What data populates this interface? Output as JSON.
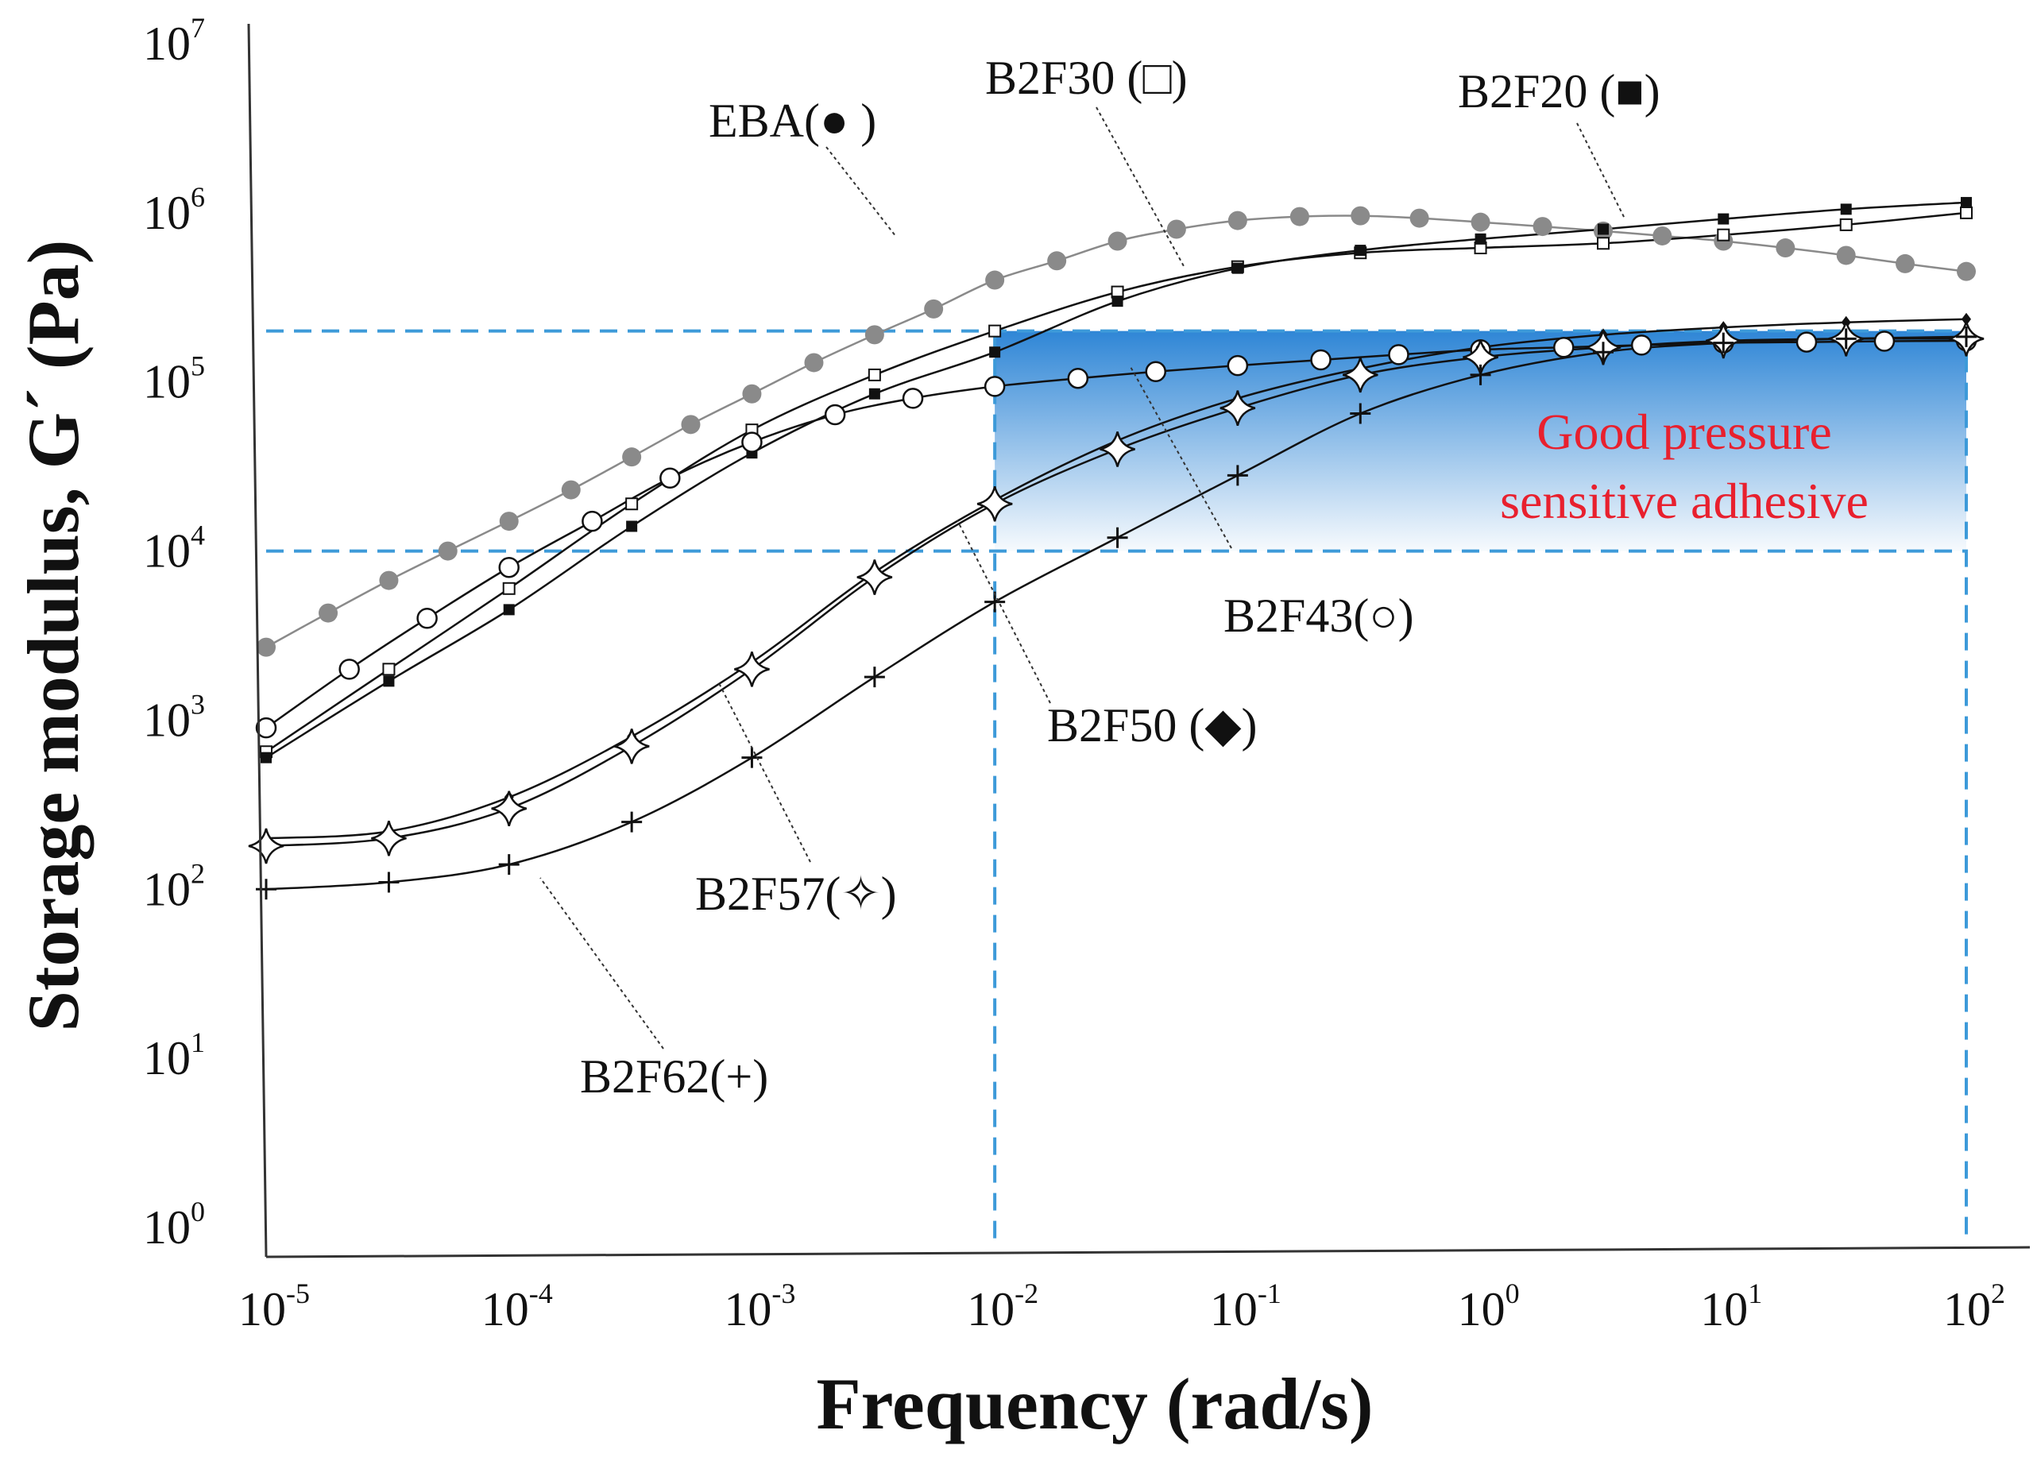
{
  "chart_data": {
    "type": "scatter",
    "title": "",
    "xlabel": "Frequency (rad/s)",
    "ylabel": "Storage modulus, G´ (Pa)",
    "xscale": "log",
    "yscale": "log",
    "xlim": [
      1e-05,
      100
    ],
    "ylim": [
      1,
      10000000
    ],
    "xticks": [
      {
        "base": "10",
        "exp": "-5"
      },
      {
        "base": "10",
        "exp": "-4"
      },
      {
        "base": "10",
        "exp": "-3"
      },
      {
        "base": "10",
        "exp": "-2"
      },
      {
        "base": "10",
        "exp": "-1"
      },
      {
        "base": "10",
        "exp": "0"
      },
      {
        "base": "10",
        "exp": "1"
      },
      {
        "base": "10",
        "exp": "2"
      }
    ],
    "yticks": [
      {
        "base": "10",
        "exp": "0"
      },
      {
        "base": "10",
        "exp": "1"
      },
      {
        "base": "10",
        "exp": "2"
      },
      {
        "base": "10",
        "exp": "3"
      },
      {
        "base": "10",
        "exp": "4"
      },
      {
        "base": "10",
        "exp": "5"
      },
      {
        "base": "10",
        "exp": "6"
      },
      {
        "base": "10",
        "exp": "7"
      }
    ],
    "region": {
      "label_line1": "Good pressure",
      "label_line2": "sensitive adhesive",
      "x_range": [
        0.01,
        100
      ],
      "y_range": [
        10000,
        200000
      ],
      "color": "#3d8fd9"
    },
    "series": [
      {
        "name": "EBA",
        "label": "EBA(● )",
        "marker": "filled-circle",
        "color": "#8a8a8a",
        "label_color": "#9a9a9a",
        "x": [
          1e-05,
          1.8e-05,
          3.2e-05,
          5.6e-05,
          0.0001,
          0.00018,
          0.00032,
          0.00056,
          0.001,
          0.0018,
          0.0032,
          0.0056,
          0.01,
          0.018,
          0.032,
          0.056,
          0.1,
          0.18,
          0.32,
          0.56,
          1,
          1.8,
          3.2,
          5.6,
          10,
          18,
          32,
          56,
          100
        ],
        "y": [
          2700,
          4300,
          6700,
          10000,
          15000,
          23000,
          36000,
          56000,
          85000,
          130000,
          190000,
          270000,
          400000,
          520000,
          680000,
          800000,
          900000,
          950000,
          960000,
          930000,
          880000,
          830000,
          780000,
          730000,
          680000,
          620000,
          560000,
          500000,
          450000
        ]
      },
      {
        "name": "B2F30",
        "label": "B2F30 (□)",
        "marker": "open-square",
        "color": "#111111",
        "x": [
          1e-05,
          3.2e-05,
          0.0001,
          0.00032,
          0.001,
          0.0032,
          0.01,
          0.032,
          0.1,
          0.32,
          1,
          3.2,
          10,
          32,
          100
        ],
        "y": [
          650,
          2000,
          6000,
          19000,
          52000,
          110000,
          200000,
          340000,
          480000,
          580000,
          620000,
          660000,
          740000,
          850000,
          1000000
        ]
      },
      {
        "name": "B2F20",
        "label": "B2F20 (■)",
        "marker": "filled-square",
        "color": "#111111",
        "x": [
          1e-05,
          3.2e-05,
          0.0001,
          0.00032,
          0.001,
          0.0032,
          0.01,
          0.032,
          0.1,
          0.32,
          1,
          3.2,
          10,
          32,
          100
        ],
        "y": [
          600,
          1700,
          4500,
          14000,
          38000,
          85000,
          150000,
          300000,
          470000,
          600000,
          700000,
          800000,
          920000,
          1050000,
          1150000
        ]
      },
      {
        "name": "B2F43",
        "label": "B2F43(○)",
        "marker": "open-circle",
        "color": "#111111",
        "x": [
          1e-05,
          2.2e-05,
          4.6e-05,
          0.0001,
          0.00022,
          0.00046,
          0.001,
          0.0022,
          0.0046,
          0.01,
          0.022,
          0.046,
          0.1,
          0.22,
          0.46,
          1,
          2.2,
          4.6,
          10,
          22,
          46,
          100
        ],
        "y": [
          900,
          2000,
          4000,
          8000,
          15000,
          27000,
          44000,
          64000,
          80000,
          94000,
          105000,
          115000,
          125000,
          135000,
          145000,
          155000,
          160000,
          165000,
          170000,
          172000,
          174000,
          175000
        ]
      },
      {
        "name": "B2F50",
        "label": "B2F50 (◆)",
        "marker": "filled-diamond",
        "color": "#111111",
        "x": [
          1e-05,
          3.2e-05,
          0.0001,
          0.00032,
          0.001,
          0.0032,
          0.01,
          0.032,
          0.1,
          0.32,
          1,
          3.2,
          10,
          32,
          100
        ],
        "y": [
          200,
          220,
          350,
          800,
          2200,
          7500,
          20000,
          45000,
          80000,
          120000,
          160000,
          190000,
          210000,
          225000,
          235000
        ]
      },
      {
        "name": "B2F57",
        "label": "B2F57(✧)",
        "marker": "open-star",
        "color": "#111111",
        "x": [
          1e-05,
          3.2e-05,
          0.0001,
          0.00032,
          0.001,
          0.0032,
          0.01,
          0.032,
          0.1,
          0.32,
          1,
          3.2,
          10,
          32,
          100
        ],
        "y": [
          180,
          200,
          300,
          700,
          2000,
          7000,
          19000,
          40000,
          70000,
          110000,
          140000,
          160000,
          175000,
          180000,
          180000
        ]
      },
      {
        "name": "B2F62",
        "label": "B2F62(+)",
        "marker": "plus",
        "color": "#111111",
        "x": [
          1e-05,
          3.2e-05,
          0.0001,
          0.00032,
          0.001,
          0.0032,
          0.01,
          0.032,
          0.1,
          0.32,
          1,
          3.2,
          10,
          32,
          100
        ],
        "y": [
          100,
          110,
          140,
          250,
          600,
          1800,
          5000,
          12000,
          28000,
          65000,
          110000,
          150000,
          170000,
          180000,
          185000
        ]
      }
    ]
  }
}
